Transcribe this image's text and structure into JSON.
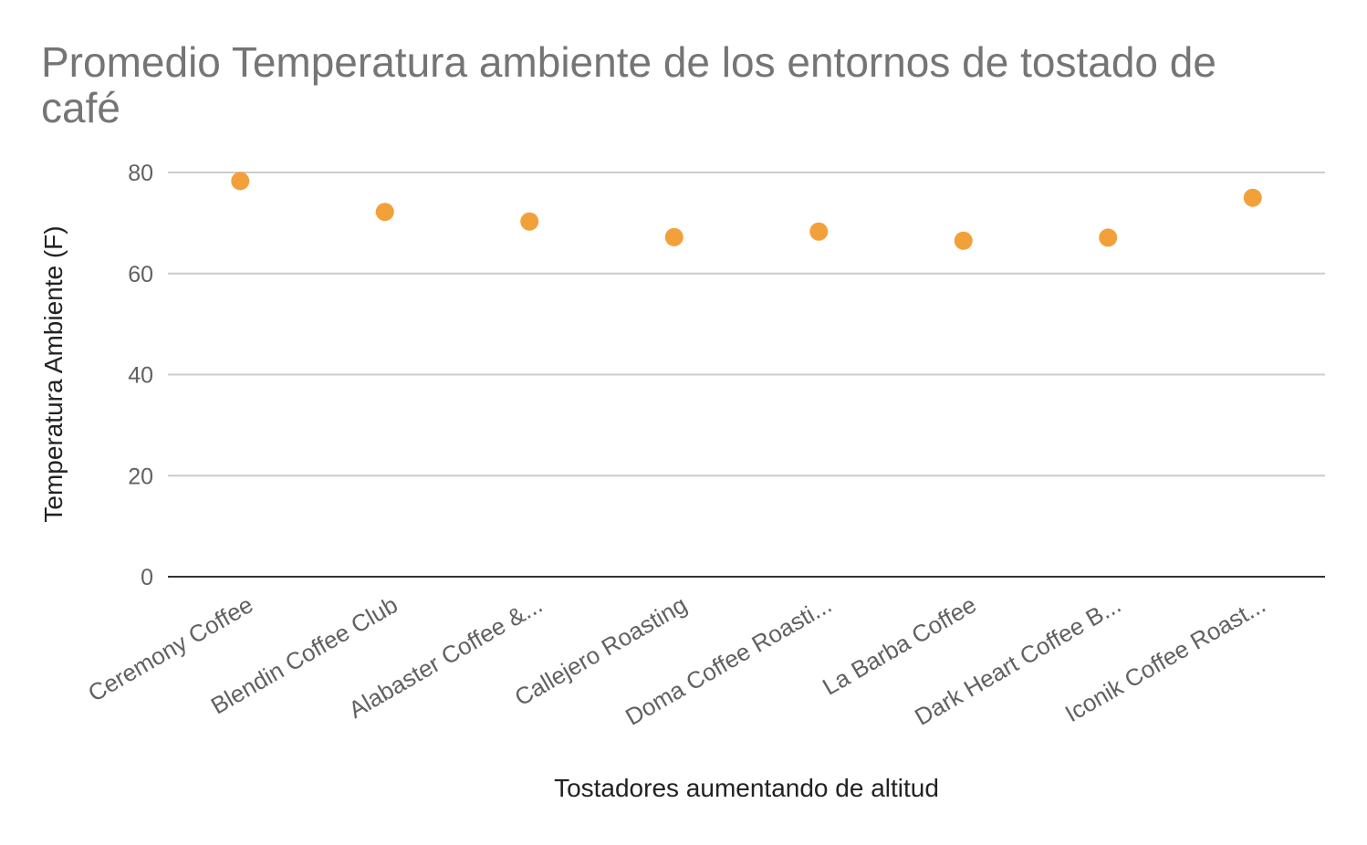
{
  "chart_data": {
    "type": "scatter",
    "title": "Promedio Temperatura ambiente de los entornos de tostado de café",
    "title_lines": [
      "Promedio Temperatura ambiente de los entornos de tostado de",
      "café"
    ],
    "xlabel": "Tostadores aumentando de altitud",
    "ylabel": "Temperatura Ambiente (F)",
    "ylim": [
      0,
      80
    ],
    "yticks": [
      "0",
      "20",
      "40",
      "60",
      "80"
    ],
    "grid": true,
    "legend": "none",
    "point_color": "#f2a13a",
    "categories": [
      "Ceremony Coffee",
      "Blendin Coffee Club",
      "Alabaster Coffee &...",
      "Callejero Roasting",
      "Doma Coffee Roasti...",
      "La Barba Coffee",
      "Dark Heart Coffee B...",
      "Iconik Coffee Roast..."
    ],
    "values": [
      78.3,
      72.2,
      70.3,
      67.2,
      68.3,
      66.5,
      67.1,
      75.0
    ]
  }
}
